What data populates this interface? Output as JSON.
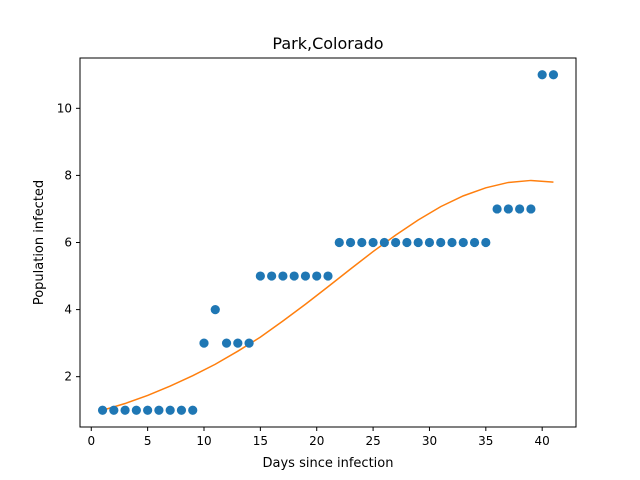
{
  "chart_data": {
    "type": "scatter",
    "title": "Park,Colorado",
    "xlabel": "Days since infection",
    "ylabel": "Population infected",
    "xlim": [
      -1,
      43
    ],
    "ylim": [
      0.5,
      11.5
    ],
    "xticks": [
      0,
      5,
      10,
      15,
      20,
      25,
      30,
      35,
      40
    ],
    "yticks": [
      2,
      4,
      6,
      8,
      10
    ],
    "grid": false,
    "colors": {
      "points": "#1f77b4",
      "fit": "#ff7f0e"
    },
    "series": [
      {
        "kind": "scatter",
        "x": [
          1,
          2,
          3,
          4,
          5,
          6,
          7,
          8,
          9,
          10,
          11,
          12,
          13,
          14,
          15,
          16,
          17,
          18,
          19,
          20,
          21,
          22,
          23,
          24,
          25,
          26,
          27,
          28,
          29,
          30,
          31,
          32,
          33,
          34,
          35,
          36,
          37,
          38,
          39,
          40,
          41
        ],
        "y": [
          1,
          1,
          1,
          1,
          1,
          1,
          1,
          1,
          1,
          3,
          4,
          3,
          3,
          3,
          5,
          5,
          5,
          5,
          5,
          5,
          5,
          6,
          6,
          6,
          6,
          6,
          6,
          6,
          6,
          6,
          6,
          6,
          6,
          6,
          6,
          7,
          7,
          7,
          7,
          11,
          11
        ]
      },
      {
        "kind": "line",
        "x": [
          1,
          3,
          5,
          7,
          9,
          11,
          13,
          15,
          17,
          19,
          21,
          23,
          25,
          27,
          29,
          31,
          33,
          35,
          37,
          39,
          41
        ],
        "y": [
          1.0,
          1.2,
          1.44,
          1.72,
          2.03,
          2.37,
          2.76,
          3.18,
          3.66,
          4.16,
          4.68,
          5.21,
          5.73,
          6.22,
          6.67,
          7.07,
          7.39,
          7.63,
          7.79,
          7.85,
          7.8
        ]
      }
    ]
  }
}
